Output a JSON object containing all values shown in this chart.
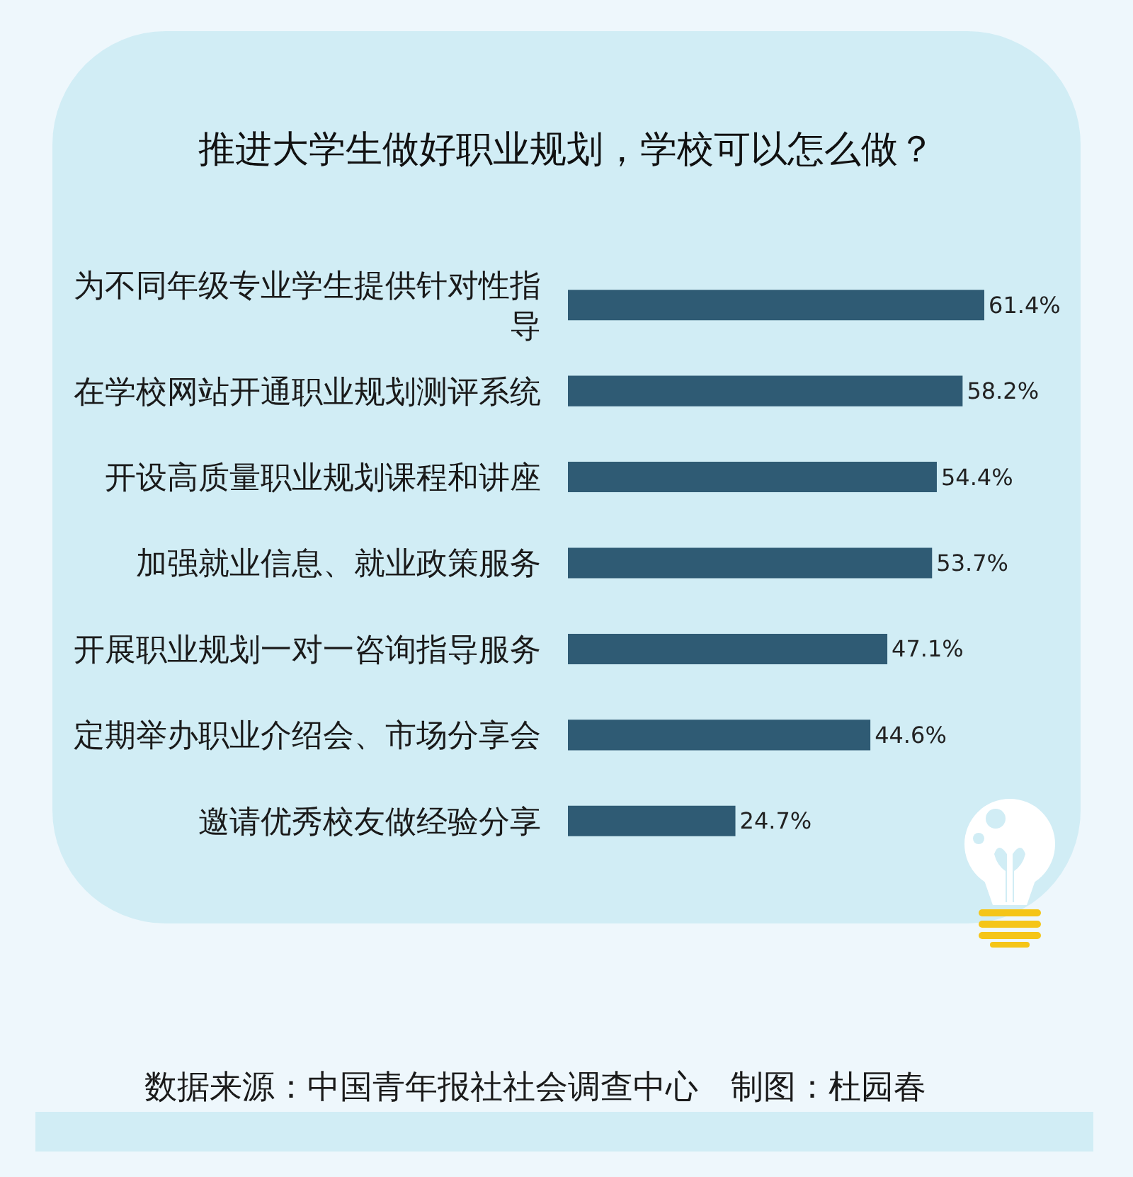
{
  "chart_data": {
    "type": "bar",
    "orientation": "horizontal",
    "title": "推进大学生做好职业规划，学校可以怎么做？",
    "categories": [
      "为不同年级专业学生提供针对性指导",
      "在学校网站开通职业规划测评系统",
      "开设高质量职业规划课程和讲座",
      "加强就业信息、就业政策服务",
      "开展职业规划一对一咨询指导服务",
      "定期举办职业介绍会、市场分享会",
      "邀请优秀校友做经验分享"
    ],
    "values": [
      61.4,
      58.2,
      54.4,
      53.7,
      47.1,
      44.6,
      24.7
    ],
    "value_labels": [
      "61.4%",
      "58.2%",
      "54.4%",
      "53.7%",
      "47.1%",
      "44.6%",
      "24.7%"
    ],
    "color": "#2f5b74",
    "tick_labels": "y",
    "annotations": [
      "数据来源：中国青年报社社会调查中心　制图：杜园春"
    ]
  }
}
